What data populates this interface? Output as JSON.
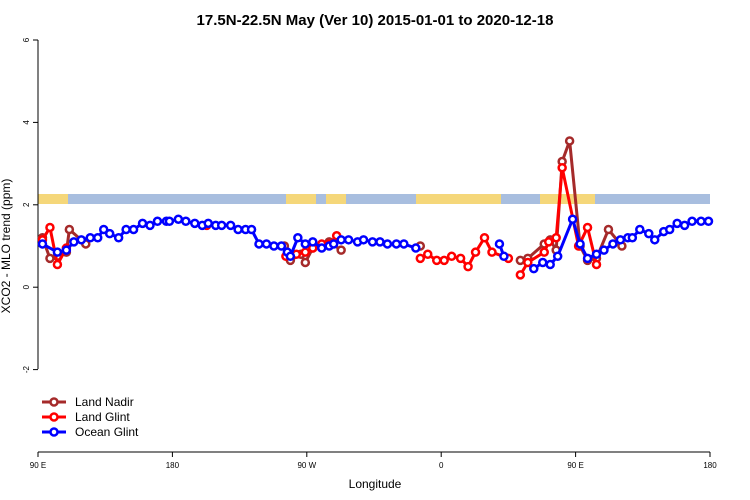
{
  "chart_data": {
    "type": "line",
    "title": "17.5N-22.5N May (Ver 10)   2015-01-01 to 2020-12-18",
    "x_label": "Longitude",
    "y_label": "XCO2 - MLO trend (ppm)",
    "xlim": [
      90,
      540
    ],
    "ylim": [
      -4,
      6
    ],
    "xticks": [
      {
        "value": 90,
        "label": "90 E"
      },
      180,
      {
        "value": 270,
        "label": "90 W"
      },
      {
        "value": 360,
        "label": "0"
      },
      {
        "value": 450,
        "label": "90 E"
      },
      {
        "value": 540,
        "label": "180"
      }
    ],
    "yticks": [
      -2,
      0,
      2,
      4,
      6
    ],
    "legend": "lower left",
    "series": [
      {
        "name": "Land Nadir",
        "color": "#a52a2a",
        "x": [
          93,
          98,
          103,
          109,
          111,
          122,
          124,
          255,
          259,
          266,
          269,
          274,
          285,
          293,
          300,
          346,
          350,
          413,
          418,
          429,
          433,
          437,
          441,
          446,
          453,
          458,
          464,
          472,
          481
        ],
        "values": [
          1.2,
          0.7,
          0.75,
          0.85,
          1.4,
          1.05,
          null,
          1.0,
          0.65,
          0.8,
          0.6,
          0.95,
          1.1,
          0.9,
          null,
          1.0,
          null,
          0.65,
          0.7,
          1.05,
          1.15,
          0.9,
          3.05,
          3.55,
          1.0,
          0.65,
          0.7,
          1.4,
          1.0
        ]
      },
      {
        "name": "Land Glint",
        "color": "#ff0000",
        "x": [
          93,
          98,
          103,
          109,
          150,
          203,
          230,
          256,
          263,
          269,
          274,
          280,
          285,
          290,
          300,
          346,
          351,
          357,
          362,
          367,
          373,
          378,
          383,
          389,
          394,
          405,
          409,
          413,
          418,
          429,
          432,
          437,
          441,
          452,
          458,
          464
        ],
        "values": [
          1.15,
          1.45,
          0.55,
          0.95,
          null,
          1.5,
          null,
          0.75,
          0.8,
          0.85,
          0.95,
          1.05,
          1.05,
          1.25,
          null,
          0.7,
          0.8,
          0.65,
          0.65,
          0.75,
          0.7,
          0.5,
          0.85,
          1.2,
          0.85,
          0.7,
          null,
          0.3,
          0.6,
          0.85,
          1.1,
          1.2,
          2.9,
          1.0,
          1.45,
          0.55
        ]
      },
      {
        "name": "Ocean Glint",
        "color": "#0000ff",
        "x": [
          93,
          103,
          109,
          114,
          119,
          125,
          130,
          134,
          138,
          144,
          149,
          154,
          160,
          165,
          170,
          176,
          178,
          184,
          189,
          195,
          200,
          204,
          209,
          213,
          219,
          224,
          229,
          233,
          238,
          243,
          248,
          253,
          257,
          259,
          264,
          269,
          274,
          280,
          285,
          288,
          293,
          298,
          304,
          308,
          314,
          319,
          324,
          330,
          335,
          343,
          370,
          399,
          402,
          410,
          422,
          428,
          433,
          438,
          448,
          453,
          458,
          464,
          469,
          475,
          480,
          485,
          488,
          493,
          499,
          503,
          509,
          513,
          518,
          523,
          528,
          534,
          539
        ],
        "values": [
          1.05,
          0.85,
          0.9,
          1.1,
          1.15,
          1.2,
          1.2,
          1.4,
          1.3,
          1.2,
          1.4,
          1.4,
          1.55,
          1.5,
          1.6,
          1.6,
          1.6,
          1.65,
          1.6,
          1.55,
          1.5,
          1.55,
          1.5,
          1.5,
          1.5,
          1.4,
          1.4,
          1.4,
          1.05,
          1.05,
          1.0,
          1.0,
          0.85,
          0.75,
          1.2,
          1.05,
          1.1,
          0.95,
          1.0,
          1.05,
          1.15,
          1.15,
          1.1,
          1.15,
          1.1,
          1.1,
          1.05,
          1.05,
          1.05,
          0.95,
          null,
          1.05,
          0.75,
          null,
          0.45,
          0.6,
          0.55,
          0.75,
          1.65,
          1.05,
          0.7,
          0.8,
          0.9,
          1.05,
          1.15,
          1.2,
          1.2,
          1.4,
          1.3,
          1.15,
          1.35,
          1.4,
          1.55,
          1.5,
          1.6,
          1.6,
          1.6
        ]
      }
    ]
  }
}
